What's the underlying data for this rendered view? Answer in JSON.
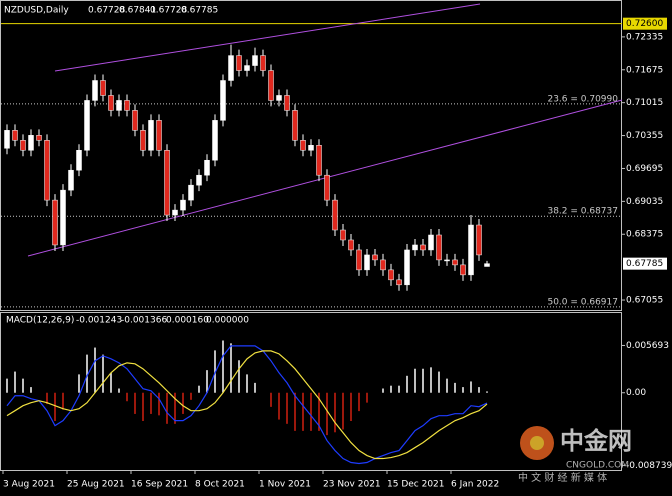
{
  "chart_data": [
    {
      "type": "candlestick",
      "title": "NZDUSD,Daily",
      "categories": [
        "3 Aug 2021",
        null,
        null,
        null,
        null,
        null,
        null,
        null,
        "25 Aug 2021",
        null,
        null,
        null,
        null,
        null,
        null,
        null,
        "16 Sep 2021",
        null,
        null,
        null,
        null,
        null,
        null,
        null,
        "8 Oct 2021",
        null,
        null,
        null,
        null,
        null,
        null,
        null,
        "1 Nov 2021",
        null,
        null,
        null,
        null,
        null,
        null,
        null,
        "23 Nov 2021",
        null,
        null,
        null,
        null,
        null,
        null,
        null,
        "15 Dec 2021",
        null,
        null,
        null,
        null,
        null,
        null,
        null,
        "6 Jan 2022",
        null,
        null,
        null,
        null
      ],
      "open": [
        0.701,
        0.7046,
        0.7026,
        0.7006,
        0.7036,
        0.7026,
        0.6906,
        0.6816,
        0.6926,
        0.6966,
        0.7006,
        0.7106,
        0.7146,
        0.7116,
        0.7086,
        0.7106,
        0.7086,
        0.7046,
        0.7006,
        0.7066,
        0.7006,
        0.6876,
        0.6886,
        0.6906,
        0.6936,
        0.6956,
        0.6986,
        0.7066,
        0.7146,
        0.7196,
        0.7166,
        0.7176,
        0.7196,
        0.7166,
        0.7106,
        0.7116,
        0.7086,
        0.7026,
        0.7006,
        0.7016,
        0.6956,
        0.6906,
        0.6846,
        0.6826,
        0.6806,
        0.6766,
        0.6796,
        0.6786,
        0.6766,
        0.6746,
        0.6736,
        0.6806,
        0.6816,
        0.6806,
        0.6836,
        0.6786,
        0.6786,
        0.6776,
        0.6756,
        0.6856,
        0.67728
      ],
      "high": [
        0.7058,
        0.7058,
        0.7038,
        0.7048,
        0.7048,
        0.7038,
        0.6918,
        0.6938,
        0.6978,
        0.7018,
        0.7118,
        0.7158,
        0.7158,
        0.7128,
        0.7118,
        0.7118,
        0.7098,
        0.7058,
        0.7078,
        0.7078,
        0.7018,
        0.6898,
        0.6918,
        0.6948,
        0.6968,
        0.6998,
        0.7078,
        0.7158,
        0.7218,
        0.7208,
        0.7188,
        0.7212,
        0.7208,
        0.7178,
        0.7128,
        0.7128,
        0.7098,
        0.7038,
        0.7028,
        0.7028,
        0.6968,
        0.6918,
        0.6858,
        0.6838,
        0.6818,
        0.6808,
        0.6808,
        0.6798,
        0.6778,
        0.6758,
        0.6818,
        0.6828,
        0.6828,
        0.6848,
        0.6848,
        0.6798,
        0.6798,
        0.6788,
        0.6876,
        0.6868,
        0.67841
      ],
      "low": [
        0.6998,
        0.7014,
        0.6994,
        0.6994,
        0.7014,
        0.6894,
        0.6804,
        0.6804,
        0.6914,
        0.6954,
        0.6994,
        0.7094,
        0.7104,
        0.7074,
        0.7074,
        0.7074,
        0.7034,
        0.6994,
        0.6994,
        0.6994,
        0.6864,
        0.6864,
        0.6874,
        0.6894,
        0.6924,
        0.6944,
        0.6974,
        0.7054,
        0.7134,
        0.7154,
        0.7154,
        0.7164,
        0.7154,
        0.7094,
        0.7094,
        0.7074,
        0.7014,
        0.6994,
        0.6994,
        0.6944,
        0.6894,
        0.6834,
        0.6814,
        0.6794,
        0.6754,
        0.6754,
        0.6774,
        0.6754,
        0.6734,
        0.6724,
        0.6724,
        0.6794,
        0.6794,
        0.6794,
        0.6774,
        0.6774,
        0.6764,
        0.6744,
        0.6744,
        0.6784,
        0.67728
      ],
      "close": [
        0.7046,
        0.7026,
        0.7006,
        0.7036,
        0.7026,
        0.6906,
        0.6816,
        0.6926,
        0.6966,
        0.7006,
        0.7106,
        0.7146,
        0.7116,
        0.7086,
        0.7106,
        0.7086,
        0.7046,
        0.7006,
        0.7066,
        0.7006,
        0.6876,
        0.6886,
        0.6906,
        0.6936,
        0.6956,
        0.6986,
        0.7066,
        0.7146,
        0.7196,
        0.7166,
        0.7176,
        0.7196,
        0.7166,
        0.7106,
        0.7116,
        0.7086,
        0.7026,
        0.7006,
        0.7016,
        0.6956,
        0.6906,
        0.6846,
        0.6826,
        0.6806,
        0.6766,
        0.6796,
        0.6786,
        0.6766,
        0.6746,
        0.6736,
        0.6806,
        0.6816,
        0.6806,
        0.6836,
        0.6786,
        0.6786,
        0.6776,
        0.6756,
        0.6856,
        0.6796,
        0.67785
      ],
      "up_color": "#ffffff",
      "down_color": "#e0281e",
      "ylim": [
        0.66855,
        0.73055
      ],
      "yticks": [
        0.72335,
        0.71675,
        0.71015,
        0.70355,
        0.69695,
        0.69035,
        0.68375,
        0.67055
      ],
      "levels": [
        {
          "value": 0.726,
          "label": "0.72600",
          "color": "#e8d800"
        }
      ],
      "fibonacci": [
        {
          "value": 0.7099,
          "label": "23.6 = 0.70990"
        },
        {
          "value": 0.68737,
          "label": "38.2 = 0.68737"
        },
        {
          "value": 0.66917,
          "label": "50.0 = 0.66917"
        }
      ]
    },
    {
      "type": "macd",
      "title": "MACD(12,26,9)",
      "readout": [
        "-0.001243",
        "-0.001366",
        "0.000160",
        "0.000000"
      ],
      "histogram": [
        0.0017,
        0.00255,
        0.0017,
        0.00068,
        0,
        -0.00136,
        -0.0034,
        -0.00204,
        0,
        0.00221,
        0.00459,
        0.00544,
        0.00459,
        0.00238,
        0.00051,
        -0.00102,
        -0.00255,
        -0.0034,
        -0.00255,
        -0.00272,
        -0.00374,
        -0.00374,
        -0.00255,
        -0.00085,
        0.00085,
        0.00272,
        0.0051,
        0.00629,
        0.00595,
        0.00391,
        0.00221,
        0.00119,
        0,
        -0.0017,
        -0.00323,
        -0.00374,
        -0.00459,
        -0.00459,
        -0.00459,
        -0.00459,
        -0.0051,
        -0.00476,
        -0.00442,
        -0.0034,
        -0.00221,
        -0.00119,
        0,
        0.00051,
        0.00085,
        0.00085,
        0.00204,
        0.00289,
        0.00289,
        0.00306,
        0.00255,
        0.0017,
        0.00119,
        0.00068,
        0.00136,
        0.00068,
        0.00016
      ],
      "series": [
        {
          "color": "#1e3cff",
          "values": [
            -0.00156,
            -0.00036,
            -0.00036,
            -0.00072,
            -0.00096,
            -0.00216,
            -0.00396,
            -0.00336,
            -0.00216,
            -0.00036,
            0.00204,
            0.00384,
            0.00444,
            0.00408,
            0.0036,
            0.00288,
            0.00168,
            0.00048,
            0.00024,
            -0.00072,
            -0.0024,
            -0.00336,
            -0.00336,
            -0.00276,
            -0.00156,
            0,
            0.0024,
            0.00444,
            0.00564,
            0.00564,
            0.00564,
            0.00564,
            0.00504,
            0.00384,
            0.0024,
            0.0012,
            -0.00036,
            -0.00156,
            -0.00276,
            -0.00396,
            -0.00576,
            -0.00696,
            -0.00792,
            -0.0084,
            -0.00852,
            -0.0084,
            -0.00792,
            -0.00756,
            -0.0072,
            -0.00696,
            -0.00576,
            -0.00456,
            -0.00396,
            -0.00312,
            -0.00276,
            -0.00276,
            -0.00252,
            -0.00252,
            -0.00156,
            -0.00168,
            -0.001243
          ]
        },
        {
          "color": "#f0e040",
          "values": [
            -0.00276,
            -0.00216,
            -0.00156,
            -0.0012,
            -0.00096,
            -0.0012,
            -0.00156,
            -0.00192,
            -0.00216,
            -0.00192,
            -0.0012,
            0,
            0.0012,
            0.0024,
            0.00324,
            0.0036,
            0.00348,
            0.00288,
            0.00204,
            0.0012,
            0.00024,
            -0.00072,
            -0.00156,
            -0.00216,
            -0.00216,
            -0.00192,
            -0.0012,
            0,
            0.00144,
            0.00288,
            0.00408,
            0.0048,
            0.00504,
            0.00504,
            0.00468,
            0.00384,
            0.00288,
            0.00168,
            0.00048,
            -0.00072,
            -0.00216,
            -0.0036,
            -0.0048,
            -0.006,
            -0.00696,
            -0.00756,
            -0.00792,
            -0.00792,
            -0.0078,
            -0.00756,
            -0.0072,
            -0.0066,
            -0.006,
            -0.00528,
            -0.00456,
            -0.00396,
            -0.00336,
            -0.003,
            -0.00252,
            -0.00216,
            -0.001366
          ]
        }
      ],
      "hist_up_color": "#ffffff",
      "hist_down_color": "#d02010",
      "ylim": [
        -0.0093,
        0.0096
      ],
      "yticks": [
        0.005693,
        {
          "value": 0,
          "label": "0.00"
        },
        -0.008739
      ]
    }
  ],
  "watermark": {
    "brand": "中金网",
    "site": "CNGOLD.COM",
    "tagline": "中 文 财 经 新 媒 体"
  }
}
